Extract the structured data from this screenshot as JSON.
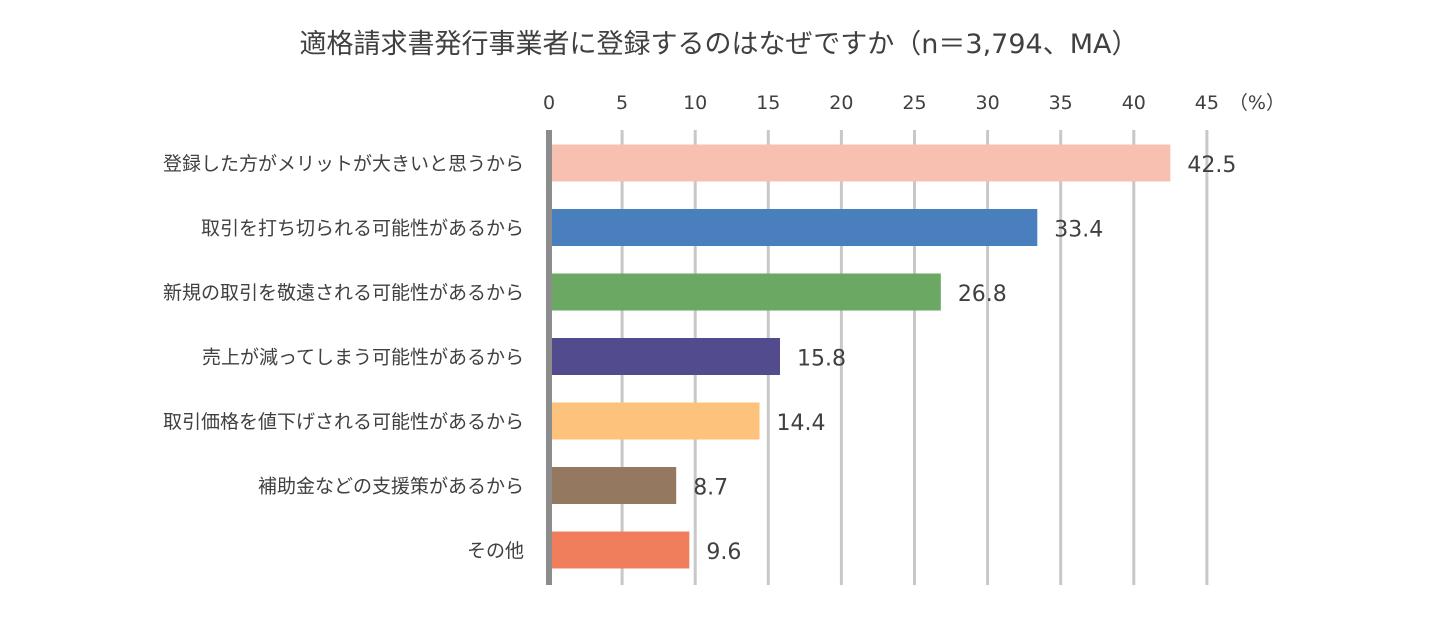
{
  "chart_data": {
    "type": "bar",
    "orientation": "horizontal",
    "title": "適格請求書発行事業者に登録するのはなぜですか（n＝3,794、MA）",
    "unit_label": "（%）",
    "xlim": [
      0,
      45
    ],
    "ticks": [
      0,
      5,
      10,
      15,
      20,
      25,
      30,
      35,
      40,
      45
    ],
    "grid": true,
    "categories": [
      "登録した方がメリットが大きいと思うから",
      "取引を打ち切られる可能性があるから",
      "新規の取引を敬遠される可能性があるから",
      "売上が減ってしまう可能性があるから",
      "取引価格を値下げされる可能性があるから",
      "補助金などの支援策があるから",
      "その他"
    ],
    "values": [
      42.5,
      33.4,
      26.8,
      15.8,
      14.4,
      8.7,
      9.6
    ],
    "colors": [
      "#f7c0b0",
      "#4a7fbd",
      "#6aa863",
      "#524c8f",
      "#fdc27b",
      "#957860",
      "#f07e5c"
    ]
  }
}
